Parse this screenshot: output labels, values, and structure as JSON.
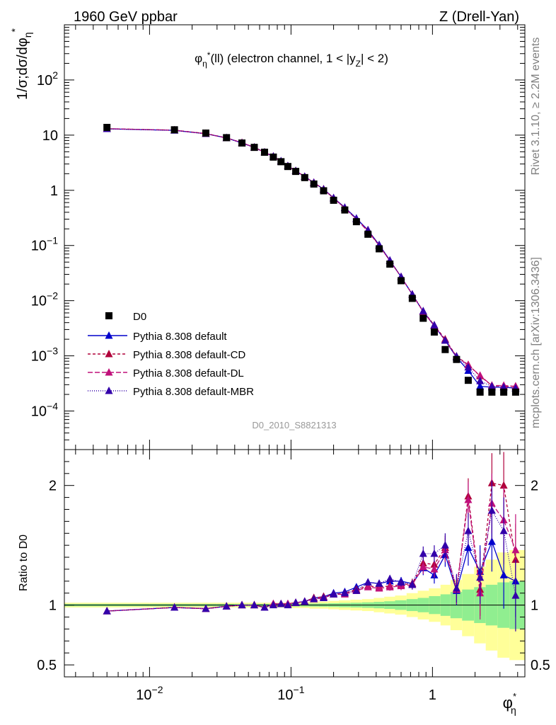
{
  "header": {
    "left": "1960 GeV ppbar",
    "right": "Z (Drell-Yan)"
  },
  "side_labels": {
    "rivet": "Rivet 3.1.10, ≥ 2.2M events",
    "mcplots": "mcplots.cern.ch [arXiv:1306.3436]"
  },
  "chart_data": [
    {
      "type": "line",
      "panel": "main",
      "title": "φη*(ll) (electron channel, 1 < |yZ| < 2)",
      "watermark": "D0_2010_S8821313",
      "ylabel": "1/σ;dσ/dφη*",
      "xscale": "log",
      "yscale": "log",
      "xlim": [
        0.0025,
        4.5
      ],
      "ylim": [
        2e-05,
        1000
      ],
      "legend_position": "bottom-left",
      "x": [
        0.005,
        0.015,
        0.025,
        0.035,
        0.045,
        0.055,
        0.065,
        0.075,
        0.085,
        0.095,
        0.108,
        0.125,
        0.145,
        0.17,
        0.2,
        0.24,
        0.29,
        0.35,
        0.42,
        0.5,
        0.6,
        0.72,
        0.86,
        1.03,
        1.23,
        1.48,
        1.79,
        2.17,
        2.63,
        3.19,
        3.87
      ],
      "series": [
        {
          "name": "D0",
          "style": "data",
          "color": "#000000",
          "marker": "square",
          "values": [
            13.8,
            12.5,
            10.9,
            9.0,
            7.2,
            6.0,
            4.9,
            4.0,
            3.3,
            2.7,
            2.2,
            1.7,
            1.3,
            0.98,
            0.66,
            0.44,
            0.27,
            0.16,
            0.087,
            0.046,
            0.023,
            0.011,
            0.0048,
            0.0027,
            0.0013,
            0.00086,
            0.00036,
            0.00022,
            0.00022,
            0.00022,
            0.00022
          ]
        },
        {
          "name": "Pythia 8.308 default",
          "color": "#0000cc",
          "dash": "solid",
          "values": [
            13.0,
            12.2,
            10.6,
            8.9,
            7.2,
            6.0,
            4.9,
            4.1,
            3.4,
            2.75,
            2.25,
            1.77,
            1.38,
            1.05,
            0.73,
            0.49,
            0.31,
            0.19,
            0.103,
            0.054,
            0.027,
            0.013,
            0.0063,
            0.0035,
            0.0019,
            0.00094,
            0.00054,
            0.00028,
            0.00027,
            0.00027,
            0.00026
          ]
        },
        {
          "name": "Pythia 8.308 default-CD",
          "color": "#b0003a",
          "dash": "4,3",
          "values": [
            13.1,
            12.3,
            10.7,
            8.9,
            7.3,
            6.0,
            4.9,
            4.1,
            3.35,
            2.75,
            2.25,
            1.77,
            1.38,
            1.05,
            0.72,
            0.48,
            0.3,
            0.19,
            0.1,
            0.053,
            0.027,
            0.013,
            0.0064,
            0.0036,
            0.002,
            0.00098,
            0.00069,
            0.00043,
            0.00029,
            0.00028,
            0.00028
          ]
        },
        {
          "name": "Pythia 8.308 default-DL",
          "color": "#c0107a",
          "dash": "7,3",
          "values": [
            13.1,
            12.3,
            10.6,
            8.9,
            7.3,
            6.0,
            4.9,
            4.1,
            3.35,
            2.75,
            2.25,
            1.77,
            1.37,
            1.04,
            0.72,
            0.48,
            0.3,
            0.18,
            0.1,
            0.053,
            0.027,
            0.013,
            0.0063,
            0.0035,
            0.0019,
            0.00097,
            0.00068,
            0.00044,
            0.00029,
            0.00029,
            0.00028
          ]
        },
        {
          "name": "Pythia 8.308 default-MBR",
          "color": "#3300aa",
          "dash": "1,2",
          "values": [
            13.0,
            12.2,
            10.6,
            8.9,
            7.2,
            6.0,
            4.9,
            4.1,
            3.35,
            2.75,
            2.25,
            1.77,
            1.37,
            1.04,
            0.72,
            0.48,
            0.3,
            0.19,
            0.1,
            0.053,
            0.027,
            0.013,
            0.0065,
            0.0036,
            0.0019,
            0.00098,
            0.00062,
            0.00035,
            0.00028,
            0.00027,
            0.00026
          ]
        }
      ]
    },
    {
      "type": "line",
      "panel": "ratio",
      "ylabel": "Ratio to D0",
      "xlabel": "φη*",
      "xscale": "log",
      "xlim": [
        0.0025,
        4.5
      ],
      "ylim": [
        0.4,
        2.3
      ],
      "y_ticks": [
        0.5,
        1,
        2
      ],
      "x_ticks": [
        0.01,
        0.1,
        1
      ],
      "x_tick_labels": [
        "10−2",
        "10−1",
        "1"
      ],
      "bands": {
        "inner_color": "#90ee90",
        "outer_color": "#ffff99",
        "edges": [
          0.0025,
          0.01,
          0.02,
          0.03,
          0.04,
          0.05,
          0.06,
          0.07,
          0.08,
          0.09,
          0.1,
          0.116,
          0.135,
          0.157,
          0.183,
          0.218,
          0.263,
          0.318,
          0.385,
          0.456,
          0.544,
          0.656,
          0.787,
          0.944,
          1.14,
          1.34,
          1.62,
          1.97,
          2.38,
          2.88,
          3.5,
          4.5
        ],
        "inner": [
          0.01,
          0.01,
          0.01,
          0.01,
          0.01,
          0.01,
          0.01,
          0.01,
          0.01,
          0.01,
          0.012,
          0.012,
          0.013,
          0.014,
          0.016,
          0.018,
          0.02,
          0.023,
          0.027,
          0.032,
          0.04,
          0.05,
          0.06,
          0.075,
          0.09,
          0.11,
          0.13,
          0.15,
          0.17,
          0.19,
          0.2
        ],
        "outer": [
          0.02,
          0.02,
          0.02,
          0.02,
          0.02,
          0.02,
          0.02,
          0.02,
          0.02,
          0.02,
          0.025,
          0.025,
          0.03,
          0.03,
          0.035,
          0.04,
          0.045,
          0.05,
          0.06,
          0.07,
          0.08,
          0.1,
          0.12,
          0.14,
          0.17,
          0.21,
          0.26,
          0.32,
          0.38,
          0.44,
          0.46
        ]
      },
      "x": [
        0.005,
        0.015,
        0.025,
        0.035,
        0.045,
        0.055,
        0.065,
        0.075,
        0.085,
        0.095,
        0.108,
        0.125,
        0.145,
        0.17,
        0.2,
        0.24,
        0.29,
        0.35,
        0.42,
        0.5,
        0.6,
        0.72,
        0.86,
        1.03,
        1.23,
        1.48,
        1.79,
        2.17,
        2.63,
        3.19,
        3.87
      ],
      "series": [
        {
          "name": "Pythia 8.308 default",
          "color": "#0000cc",
          "values": [
            0.95,
            0.98,
            0.97,
            0.99,
            1.0,
            1.0,
            0.98,
            1.01,
            1.01,
            1.01,
            1.02,
            1.03,
            1.06,
            1.07,
            1.1,
            1.11,
            1.15,
            1.19,
            1.18,
            1.2,
            1.2,
            1.18,
            1.31,
            1.25,
            1.42,
            1.12,
            1.48,
            1.28,
            1.53,
            1.25,
            1.2
          ],
          "errors": [
            0.005,
            0.005,
            0.005,
            0.005,
            0.005,
            0.005,
            0.005,
            0.005,
            0.005,
            0.005,
            0.005,
            0.006,
            0.007,
            0.008,
            0.01,
            0.012,
            0.015,
            0.02,
            0.025,
            0.03,
            0.035,
            0.04,
            0.06,
            0.07,
            0.1,
            0.12,
            0.15,
            0.22,
            0.25,
            0.28,
            0.3
          ]
        },
        {
          "name": "Pythia 8.308 default-CD",
          "color": "#b0003a",
          "values": [
            0.95,
            0.98,
            0.97,
            0.99,
            1.0,
            1.0,
            0.98,
            1.01,
            1.01,
            1.01,
            1.02,
            1.03,
            1.06,
            1.07,
            1.09,
            1.1,
            1.13,
            1.16,
            1.15,
            1.16,
            1.17,
            1.18,
            1.35,
            1.34,
            1.48,
            1.13,
            1.91,
            1.13,
            2.02,
            2.0,
            1.38
          ],
          "errors": [
            0.005,
            0.005,
            0.005,
            0.005,
            0.005,
            0.005,
            0.005,
            0.005,
            0.005,
            0.005,
            0.005,
            0.006,
            0.007,
            0.008,
            0.01,
            0.012,
            0.015,
            0.02,
            0.025,
            0.03,
            0.035,
            0.04,
            0.06,
            0.07,
            0.1,
            0.12,
            0.15,
            0.22,
            0.25,
            0.28,
            0.3
          ]
        },
        {
          "name": "Pythia 8.308 default-DL",
          "color": "#c0107a",
          "values": [
            0.95,
            0.98,
            0.97,
            0.99,
            1.0,
            1.0,
            0.98,
            1.01,
            1.01,
            1.01,
            1.02,
            1.03,
            1.05,
            1.06,
            1.09,
            1.09,
            1.12,
            1.15,
            1.14,
            1.15,
            1.16,
            1.17,
            1.32,
            1.3,
            1.46,
            1.13,
            1.88,
            1.1,
            1.85,
            1.71,
            1.46
          ],
          "errors": [
            0.005,
            0.005,
            0.005,
            0.005,
            0.005,
            0.005,
            0.005,
            0.005,
            0.005,
            0.005,
            0.005,
            0.006,
            0.007,
            0.008,
            0.01,
            0.012,
            0.015,
            0.02,
            0.025,
            0.03,
            0.035,
            0.04,
            0.06,
            0.07,
            0.1,
            0.12,
            0.15,
            0.22,
            0.25,
            0.28,
            0.3
          ]
        },
        {
          "name": "Pythia 8.308 default-MBR",
          "color": "#3300aa",
          "values": [
            0.95,
            0.98,
            0.97,
            0.99,
            1.0,
            1.0,
            0.98,
            1.0,
            1.01,
            1.0,
            1.02,
            1.03,
            1.05,
            1.06,
            1.09,
            1.1,
            1.12,
            1.19,
            1.18,
            1.22,
            1.19,
            1.17,
            1.43,
            1.43,
            1.5,
            1.14,
            1.62,
            1.23,
            1.79,
            1.62,
            1.08
          ],
          "errors": [
            0.005,
            0.005,
            0.005,
            0.005,
            0.005,
            0.005,
            0.005,
            0.005,
            0.005,
            0.005,
            0.005,
            0.006,
            0.007,
            0.008,
            0.01,
            0.012,
            0.015,
            0.02,
            0.025,
            0.03,
            0.035,
            0.04,
            0.06,
            0.07,
            0.1,
            0.12,
            0.15,
            0.22,
            0.25,
            0.28,
            0.3
          ]
        }
      ]
    }
  ]
}
